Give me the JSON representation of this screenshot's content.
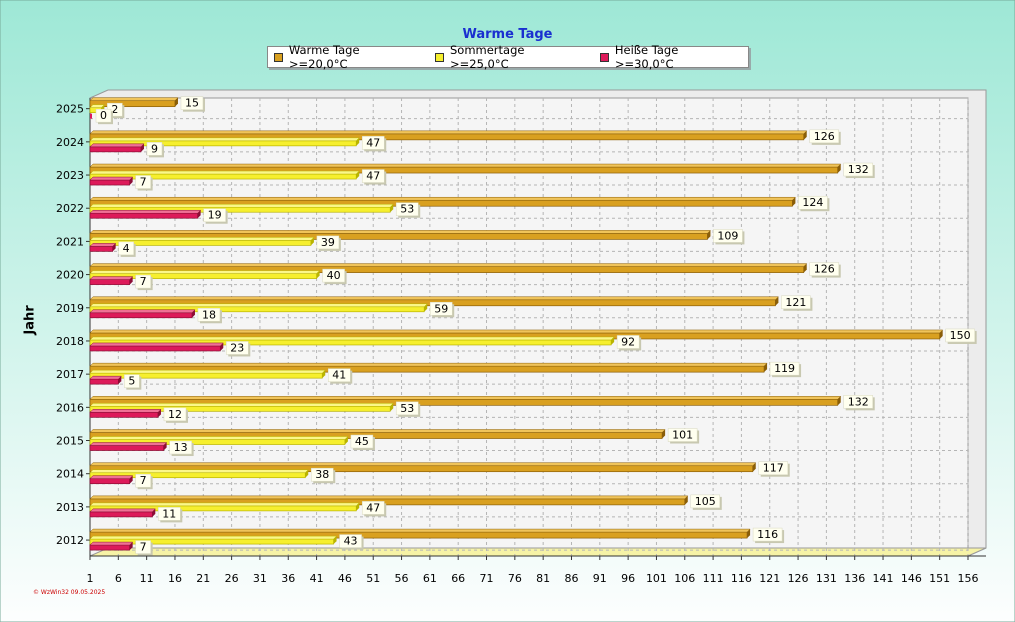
{
  "chart_data": {
    "type": "bar",
    "orientation": "horizontal",
    "title": "Warme Tage",
    "ylabel": "Jahr",
    "xlabel": "",
    "xlim": [
      1,
      156
    ],
    "x_ticks": [
      1,
      6,
      11,
      16,
      21,
      26,
      31,
      36,
      41,
      46,
      51,
      56,
      61,
      66,
      71,
      76,
      81,
      86,
      91,
      96,
      101,
      106,
      111,
      116,
      121,
      126,
      131,
      136,
      141,
      146,
      151,
      156
    ],
    "grid": true,
    "legend_placement": "top-center",
    "categories": [
      "2025",
      "2024",
      "2023",
      "2022",
      "2021",
      "2020",
      "2019",
      "2018",
      "2017",
      "2016",
      "2015",
      "2014",
      "2013",
      "2012"
    ],
    "series": [
      {
        "name": "Warme Tage >=20,0°C",
        "color": "#d9a020",
        "values": [
          15,
          126,
          132,
          124,
          109,
          126,
          121,
          150,
          119,
          132,
          101,
          117,
          105,
          116
        ]
      },
      {
        "name": "Sommertage >=25,0°C",
        "color": "#f6ef2e",
        "values": [
          2,
          47,
          47,
          53,
          39,
          40,
          59,
          92,
          41,
          53,
          45,
          38,
          47,
          43
        ]
      },
      {
        "name": "Heiße Tage >=30,0°C",
        "color": "#dd1a5a",
        "values": [
          0,
          9,
          7,
          19,
          4,
          7,
          18,
          23,
          5,
          12,
          13,
          7,
          11,
          7
        ]
      }
    ]
  },
  "footer_text": "© WzWin32  09.05.2025",
  "colors": {
    "background_top": "#9ee8d6",
    "background_bottom": "#fdfefe",
    "plot_area": "#eeeeee",
    "title": "#1a2fd0",
    "footer": "#cc0000"
  }
}
